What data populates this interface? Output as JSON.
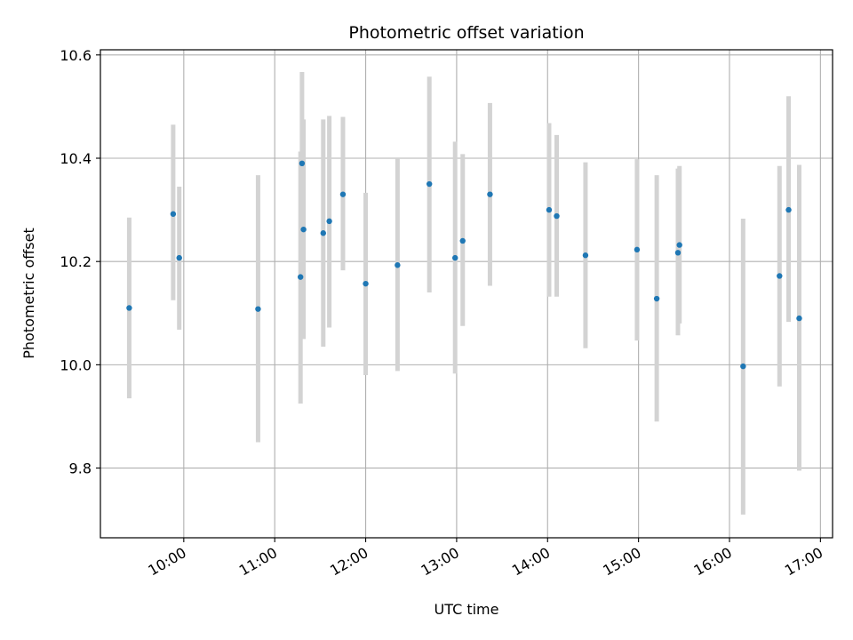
{
  "chart_data": {
    "type": "scatter",
    "title": "Photometric offset variation",
    "xlabel": "UTC time",
    "ylabel": "Photometric offset",
    "x_format": "HH:MM",
    "xlim": [
      "09:05",
      "17:08"
    ],
    "ylim": [
      9.665,
      10.61
    ],
    "grid": true,
    "legend": "none",
    "x_ticks": [
      "10:00",
      "11:00",
      "12:00",
      "13:00",
      "14:00",
      "15:00",
      "16:00",
      "17:00"
    ],
    "y_ticks": [
      9.8,
      10.0,
      10.2,
      10.4,
      10.6
    ],
    "colors": {
      "point": "#1f77b4",
      "errorbar": "#d3d3d3",
      "grid": "#b0b0b0"
    },
    "series": [
      {
        "points": [
          {
            "x": "09:24",
            "y": 10.11,
            "ylo": 9.935,
            "yhi": 10.285
          },
          {
            "x": "09:53",
            "y": 10.292,
            "ylo": 10.125,
            "yhi": 10.465
          },
          {
            "x": "09:57",
            "y": 10.207,
            "ylo": 10.068,
            "yhi": 10.345
          },
          {
            "x": "10:49",
            "y": 10.108,
            "ylo": 9.85,
            "yhi": 10.367
          },
          {
            "x": "11:17",
            "y": 10.17,
            "ylo": 9.925,
            "yhi": 10.413
          },
          {
            "x": "11:18",
            "y": 10.39,
            "ylo": 10.215,
            "yhi": 10.567
          },
          {
            "x": "11:19",
            "y": 10.262,
            "ylo": 10.05,
            "yhi": 10.475
          },
          {
            "x": "11:32",
            "y": 10.255,
            "ylo": 10.035,
            "yhi": 10.475
          },
          {
            "x": "11:36",
            "y": 10.278,
            "ylo": 10.072,
            "yhi": 10.482
          },
          {
            "x": "11:45",
            "y": 10.33,
            "ylo": 10.183,
            "yhi": 10.48
          },
          {
            "x": "12:00",
            "y": 10.157,
            "ylo": 9.98,
            "yhi": 10.333
          },
          {
            "x": "12:21",
            "y": 10.193,
            "ylo": 9.988,
            "yhi": 10.4
          },
          {
            "x": "12:42",
            "y": 10.35,
            "ylo": 10.14,
            "yhi": 10.558
          },
          {
            "x": "12:59",
            "y": 10.207,
            "ylo": 9.983,
            "yhi": 10.432
          },
          {
            "x": "13:04",
            "y": 10.24,
            "ylo": 10.075,
            "yhi": 10.408
          },
          {
            "x": "13:22",
            "y": 10.33,
            "ylo": 10.153,
            "yhi": 10.507
          },
          {
            "x": "14:01",
            "y": 10.3,
            "ylo": 10.132,
            "yhi": 10.468
          },
          {
            "x": "14:06",
            "y": 10.288,
            "ylo": 10.132,
            "yhi": 10.445
          },
          {
            "x": "14:25",
            "y": 10.212,
            "ylo": 10.032,
            "yhi": 10.392
          },
          {
            "x": "14:59",
            "y": 10.223,
            "ylo": 10.047,
            "yhi": 10.398
          },
          {
            "x": "15:12",
            "y": 10.128,
            "ylo": 9.89,
            "yhi": 10.367
          },
          {
            "x": "15:26",
            "y": 10.217,
            "ylo": 10.057,
            "yhi": 10.38
          },
          {
            "x": "15:27",
            "y": 10.232,
            "ylo": 10.08,
            "yhi": 10.385
          },
          {
            "x": "16:09",
            "y": 9.997,
            "ylo": 9.71,
            "yhi": 10.283
          },
          {
            "x": "16:33",
            "y": 10.172,
            "ylo": 9.958,
            "yhi": 10.385
          },
          {
            "x": "16:39",
            "y": 10.3,
            "ylo": 10.083,
            "yhi": 10.52
          },
          {
            "x": "16:46",
            "y": 10.09,
            "ylo": 9.795,
            "yhi": 10.387
          }
        ]
      }
    ]
  }
}
